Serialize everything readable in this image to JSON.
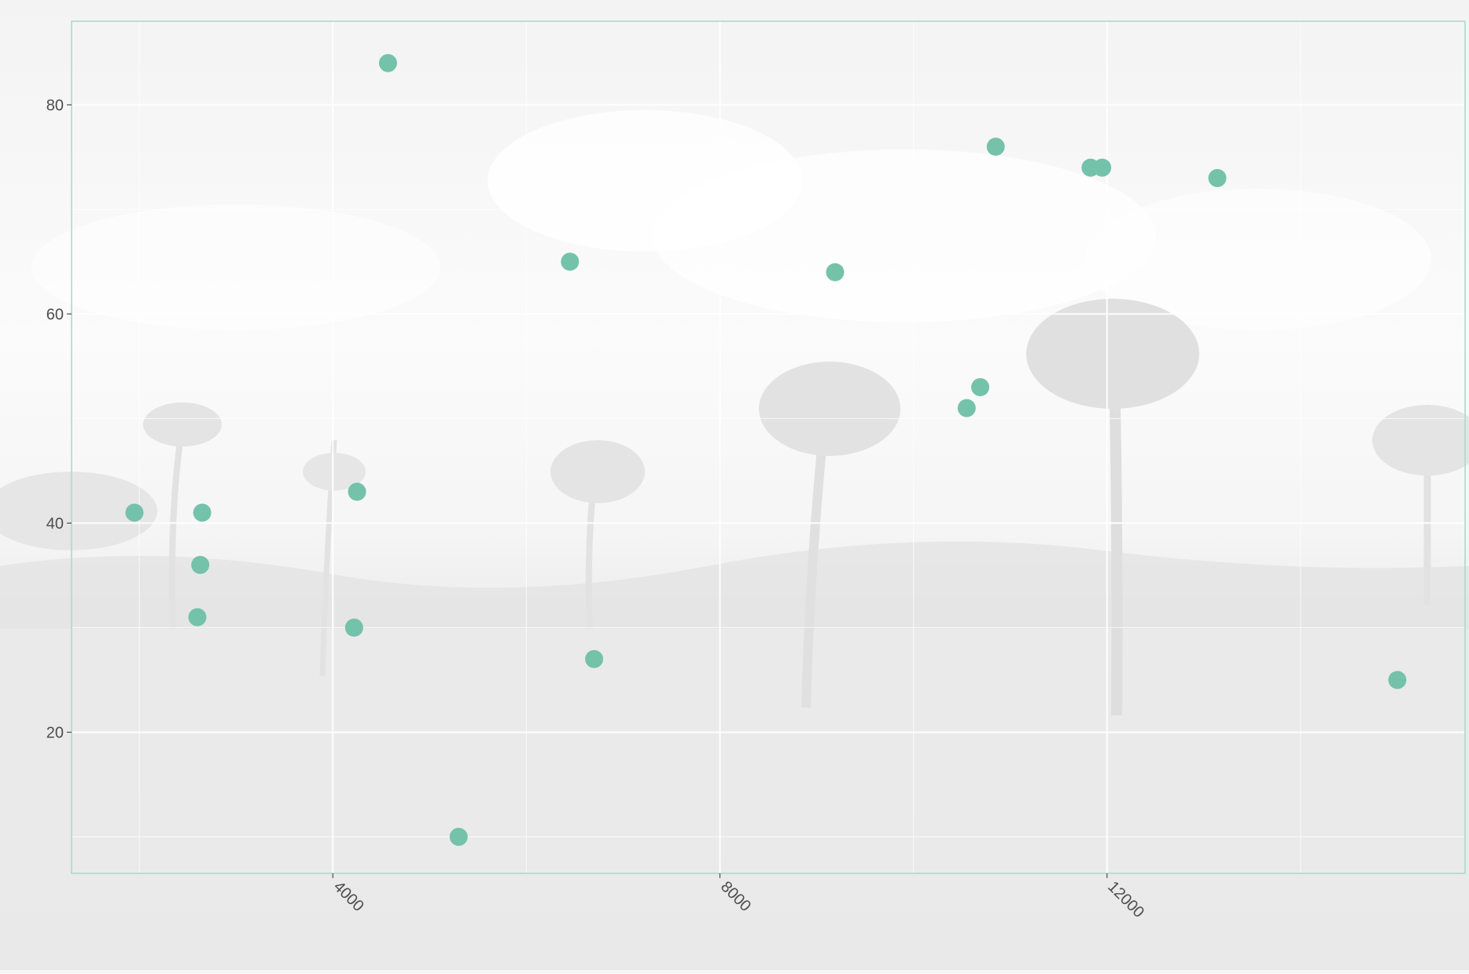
{
  "chart_data": {
    "type": "scatter",
    "title": "",
    "xlabel": "",
    "ylabel": "",
    "xlim": [
      1300,
      15700
    ],
    "ylim": [
      6.5,
      88
    ],
    "x_ticks": [
      4000,
      8000,
      12000
    ],
    "x_tick_labels": [
      "4000",
      "8000",
      "12000"
    ],
    "y_ticks": [
      20,
      40,
      60,
      80
    ],
    "y_tick_labels": [
      "20",
      "40",
      "60",
      "80"
    ],
    "grid": true,
    "legend": "none",
    "background": "faded grayscale photograph of palm trees on a grassy field",
    "point_color": "#74c2a9",
    "panel_border_color": "#a8d8c7",
    "points": [
      {
        "x": 1950,
        "y": 41
      },
      {
        "x": 2650,
        "y": 41
      },
      {
        "x": 2630,
        "y": 36
      },
      {
        "x": 2600,
        "y": 31
      },
      {
        "x": 4220,
        "y": 30
      },
      {
        "x": 4250,
        "y": 43
      },
      {
        "x": 4570,
        "y": 84
      },
      {
        "x": 5300,
        "y": 10
      },
      {
        "x": 6450,
        "y": 65
      },
      {
        "x": 6700,
        "y": 27
      },
      {
        "x": 9190,
        "y": 64
      },
      {
        "x": 10550,
        "y": 51
      },
      {
        "x": 10690,
        "y": 53
      },
      {
        "x": 10850,
        "y": 76
      },
      {
        "x": 11830,
        "y": 74
      },
      {
        "x": 11950,
        "y": 74
      },
      {
        "x": 13140,
        "y": 73
      },
      {
        "x": 15000,
        "y": 25
      }
    ]
  }
}
